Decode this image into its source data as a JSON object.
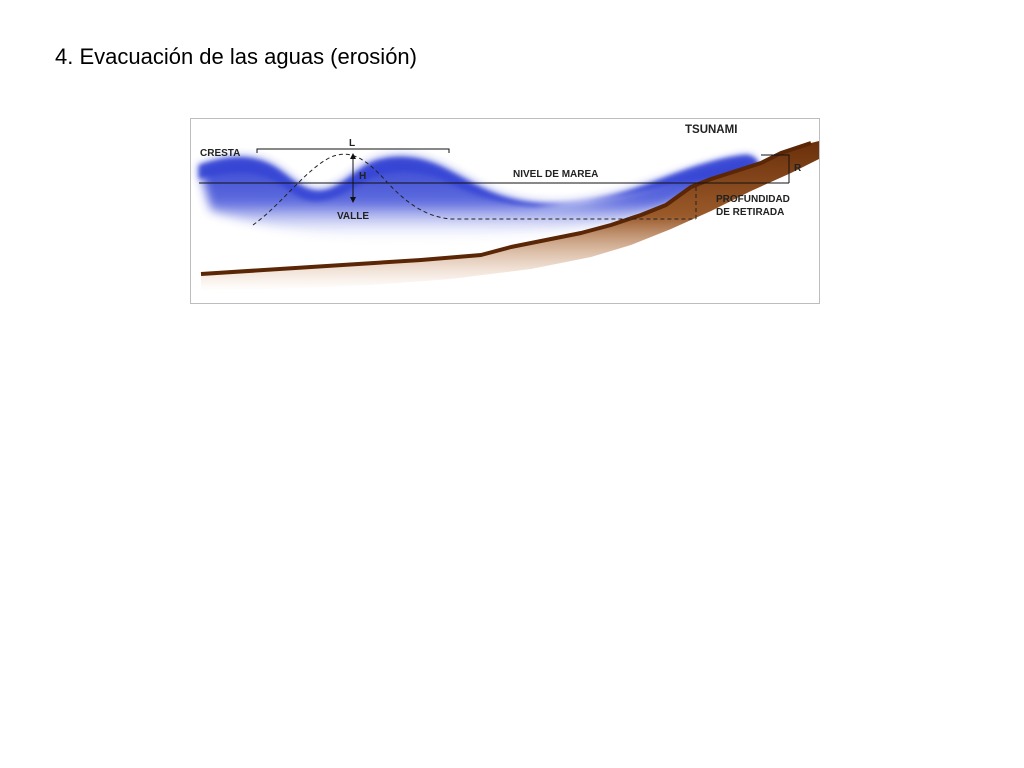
{
  "slide": {
    "title": "4. Evacuación de las aguas (erosión)"
  },
  "diagram": {
    "labels": {
      "tsunami": "TSUNAMI",
      "crest": "CRESTA",
      "wavelength": "L",
      "height": "H",
      "trough": "VALLE",
      "tide_level": "NIVEL DE MAREA",
      "runup": "R",
      "withdrawal_line1": "PROFUNDIDAD",
      "withdrawal_line2": "DE RETIRADA"
    },
    "colors": {
      "water": "#2f3fd0",
      "water_light": "#9aa6ee",
      "seabed": "#7a3a10",
      "seabed_light": "#c07a45",
      "lines": "#111111"
    }
  }
}
